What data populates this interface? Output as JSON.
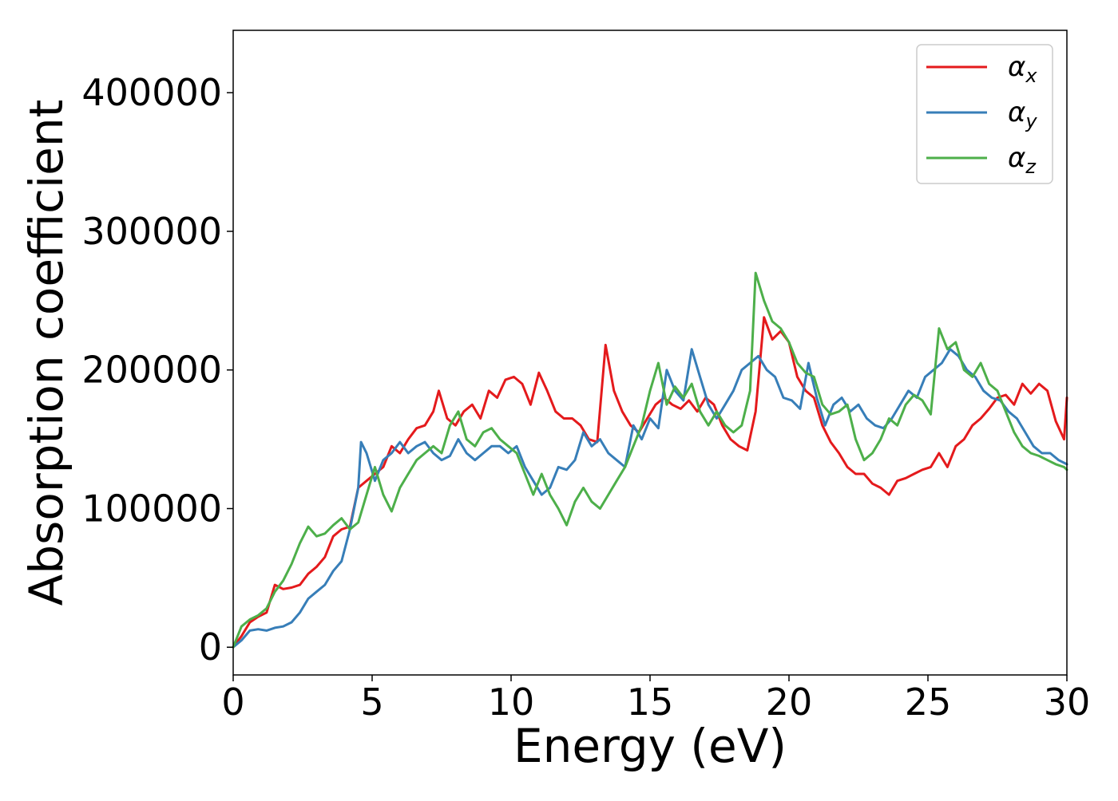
{
  "chart_data": {
    "type": "line",
    "title": "",
    "xlabel": "Energy (eV)",
    "ylabel": "Absorption coefficient",
    "xlim": [
      0,
      30
    ],
    "ylim": [
      -20000,
      445000
    ],
    "xticks": [
      0,
      5,
      10,
      15,
      20,
      25,
      30
    ],
    "yticks": [
      0,
      100000,
      200000,
      300000,
      400000
    ],
    "grid": false,
    "legend_position": "top-right",
    "series": [
      {
        "name": "α",
        "sub": "x",
        "color": "#e41a1c",
        "points": [
          [
            0,
            0
          ],
          [
            0.3,
            8000
          ],
          [
            0.6,
            18000
          ],
          [
            0.9,
            22000
          ],
          [
            1.2,
            25000
          ],
          [
            1.5,
            45000
          ],
          [
            1.8,
            42000
          ],
          [
            2.1,
            43000
          ],
          [
            2.4,
            45000
          ],
          [
            2.7,
            53000
          ],
          [
            3.0,
            58000
          ],
          [
            3.3,
            65000
          ],
          [
            3.6,
            80000
          ],
          [
            3.9,
            85000
          ],
          [
            4.2,
            87000
          ],
          [
            4.5,
            115000
          ],
          [
            4.8,
            120000
          ],
          [
            5.1,
            125000
          ],
          [
            5.4,
            130000
          ],
          [
            5.7,
            145000
          ],
          [
            6.0,
            140000
          ],
          [
            6.3,
            150000
          ],
          [
            6.6,
            158000
          ],
          [
            6.9,
            160000
          ],
          [
            7.2,
            170000
          ],
          [
            7.4,
            185000
          ],
          [
            7.7,
            165000
          ],
          [
            8.0,
            160000
          ],
          [
            8.3,
            170000
          ],
          [
            8.6,
            175000
          ],
          [
            8.9,
            165000
          ],
          [
            9.2,
            185000
          ],
          [
            9.5,
            180000
          ],
          [
            9.8,
            193000
          ],
          [
            10.1,
            195000
          ],
          [
            10.4,
            190000
          ],
          [
            10.7,
            175000
          ],
          [
            11.0,
            198000
          ],
          [
            11.3,
            185000
          ],
          [
            11.6,
            170000
          ],
          [
            11.9,
            165000
          ],
          [
            12.2,
            165000
          ],
          [
            12.5,
            160000
          ],
          [
            12.8,
            150000
          ],
          [
            13.1,
            148000
          ],
          [
            13.4,
            218000
          ],
          [
            13.7,
            185000
          ],
          [
            14.0,
            170000
          ],
          [
            14.3,
            160000
          ],
          [
            14.6,
            155000
          ],
          [
            14.9,
            165000
          ],
          [
            15.2,
            175000
          ],
          [
            15.5,
            180000
          ],
          [
            15.8,
            175000
          ],
          [
            16.1,
            172000
          ],
          [
            16.4,
            178000
          ],
          [
            16.7,
            170000
          ],
          [
            17.0,
            180000
          ],
          [
            17.3,
            175000
          ],
          [
            17.6,
            160000
          ],
          [
            17.9,
            150000
          ],
          [
            18.2,
            145000
          ],
          [
            18.5,
            142000
          ],
          [
            18.8,
            170000
          ],
          [
            19.1,
            238000
          ],
          [
            19.4,
            222000
          ],
          [
            19.7,
            228000
          ],
          [
            20.0,
            220000
          ],
          [
            20.3,
            195000
          ],
          [
            20.6,
            185000
          ],
          [
            20.9,
            180000
          ],
          [
            21.2,
            160000
          ],
          [
            21.5,
            148000
          ],
          [
            21.8,
            140000
          ],
          [
            22.1,
            130000
          ],
          [
            22.4,
            125000
          ],
          [
            22.7,
            125000
          ],
          [
            23.0,
            118000
          ],
          [
            23.3,
            115000
          ],
          [
            23.6,
            110000
          ],
          [
            23.9,
            120000
          ],
          [
            24.2,
            122000
          ],
          [
            24.5,
            125000
          ],
          [
            24.8,
            128000
          ],
          [
            25.1,
            130000
          ],
          [
            25.4,
            140000
          ],
          [
            25.7,
            130000
          ],
          [
            26.0,
            145000
          ],
          [
            26.3,
            150000
          ],
          [
            26.6,
            160000
          ],
          [
            26.9,
            165000
          ],
          [
            27.2,
            172000
          ],
          [
            27.5,
            180000
          ],
          [
            27.8,
            182000
          ],
          [
            28.1,
            175000
          ],
          [
            28.4,
            190000
          ],
          [
            28.7,
            183000
          ],
          [
            29.0,
            190000
          ],
          [
            29.3,
            185000
          ],
          [
            29.6,
            163000
          ],
          [
            29.9,
            150000
          ],
          [
            30.0,
            180000
          ]
        ]
      },
      {
        "name": "α",
        "sub": "y",
        "color": "#377eb8",
        "points": [
          [
            0,
            0
          ],
          [
            0.3,
            5000
          ],
          [
            0.6,
            12000
          ],
          [
            0.9,
            13000
          ],
          [
            1.2,
            12000
          ],
          [
            1.5,
            14000
          ],
          [
            1.8,
            15000
          ],
          [
            2.1,
            18000
          ],
          [
            2.4,
            25000
          ],
          [
            2.7,
            35000
          ],
          [
            3.0,
            40000
          ],
          [
            3.3,
            45000
          ],
          [
            3.6,
            55000
          ],
          [
            3.9,
            62000
          ],
          [
            4.2,
            85000
          ],
          [
            4.5,
            115000
          ],
          [
            4.6,
            148000
          ],
          [
            4.8,
            140000
          ],
          [
            5.1,
            120000
          ],
          [
            5.4,
            135000
          ],
          [
            5.7,
            140000
          ],
          [
            6.0,
            148000
          ],
          [
            6.3,
            140000
          ],
          [
            6.6,
            145000
          ],
          [
            6.9,
            148000
          ],
          [
            7.2,
            140000
          ],
          [
            7.5,
            135000
          ],
          [
            7.8,
            138000
          ],
          [
            8.1,
            150000
          ],
          [
            8.4,
            140000
          ],
          [
            8.7,
            135000
          ],
          [
            9.0,
            140000
          ],
          [
            9.3,
            145000
          ],
          [
            9.6,
            145000
          ],
          [
            9.9,
            140000
          ],
          [
            10.2,
            145000
          ],
          [
            10.5,
            130000
          ],
          [
            10.8,
            120000
          ],
          [
            11.1,
            110000
          ],
          [
            11.4,
            115000
          ],
          [
            11.7,
            130000
          ],
          [
            12.0,
            128000
          ],
          [
            12.3,
            135000
          ],
          [
            12.6,
            155000
          ],
          [
            12.9,
            145000
          ],
          [
            13.2,
            150000
          ],
          [
            13.5,
            140000
          ],
          [
            13.8,
            135000
          ],
          [
            14.1,
            130000
          ],
          [
            14.4,
            160000
          ],
          [
            14.7,
            150000
          ],
          [
            15.0,
            165000
          ],
          [
            15.3,
            158000
          ],
          [
            15.6,
            200000
          ],
          [
            15.9,
            185000
          ],
          [
            16.2,
            178000
          ],
          [
            16.5,
            215000
          ],
          [
            16.8,
            195000
          ],
          [
            17.1,
            175000
          ],
          [
            17.4,
            165000
          ],
          [
            17.7,
            175000
          ],
          [
            18.0,
            185000
          ],
          [
            18.3,
            200000
          ],
          [
            18.6,
            205000
          ],
          [
            18.9,
            210000
          ],
          [
            19.2,
            200000
          ],
          [
            19.5,
            195000
          ],
          [
            19.8,
            180000
          ],
          [
            20.1,
            178000
          ],
          [
            20.4,
            172000
          ],
          [
            20.7,
            205000
          ],
          [
            21.0,
            180000
          ],
          [
            21.3,
            160000
          ],
          [
            21.6,
            175000
          ],
          [
            21.9,
            180000
          ],
          [
            22.2,
            170000
          ],
          [
            22.5,
            175000
          ],
          [
            22.8,
            165000
          ],
          [
            23.1,
            160000
          ],
          [
            23.4,
            158000
          ],
          [
            23.7,
            165000
          ],
          [
            24.0,
            175000
          ],
          [
            24.3,
            185000
          ],
          [
            24.6,
            180000
          ],
          [
            24.9,
            195000
          ],
          [
            25.2,
            200000
          ],
          [
            25.5,
            205000
          ],
          [
            25.8,
            215000
          ],
          [
            26.1,
            210000
          ],
          [
            26.4,
            200000
          ],
          [
            26.7,
            195000
          ],
          [
            27.0,
            185000
          ],
          [
            27.3,
            180000
          ],
          [
            27.6,
            178000
          ],
          [
            27.9,
            170000
          ],
          [
            28.2,
            165000
          ],
          [
            28.5,
            155000
          ],
          [
            28.8,
            145000
          ],
          [
            29.1,
            140000
          ],
          [
            29.4,
            140000
          ],
          [
            29.7,
            135000
          ],
          [
            30.0,
            132000
          ]
        ]
      },
      {
        "name": "α",
        "sub": "z",
        "color": "#4daf4a",
        "points": [
          [
            0,
            0
          ],
          [
            0.3,
            15000
          ],
          [
            0.6,
            20000
          ],
          [
            0.9,
            23000
          ],
          [
            1.2,
            28000
          ],
          [
            1.5,
            40000
          ],
          [
            1.8,
            48000
          ],
          [
            2.1,
            60000
          ],
          [
            2.4,
            75000
          ],
          [
            2.7,
            87000
          ],
          [
            3.0,
            80000
          ],
          [
            3.3,
            82000
          ],
          [
            3.6,
            88000
          ],
          [
            3.9,
            93000
          ],
          [
            4.2,
            85000
          ],
          [
            4.5,
            90000
          ],
          [
            4.8,
            110000
          ],
          [
            5.1,
            130000
          ],
          [
            5.4,
            110000
          ],
          [
            5.7,
            98000
          ],
          [
            6.0,
            115000
          ],
          [
            6.3,
            125000
          ],
          [
            6.6,
            135000
          ],
          [
            6.9,
            140000
          ],
          [
            7.2,
            145000
          ],
          [
            7.5,
            140000
          ],
          [
            7.8,
            160000
          ],
          [
            8.1,
            170000
          ],
          [
            8.4,
            150000
          ],
          [
            8.7,
            145000
          ],
          [
            9.0,
            155000
          ],
          [
            9.3,
            158000
          ],
          [
            9.6,
            150000
          ],
          [
            9.9,
            145000
          ],
          [
            10.2,
            140000
          ],
          [
            10.5,
            125000
          ],
          [
            10.8,
            110000
          ],
          [
            11.1,
            125000
          ],
          [
            11.4,
            110000
          ],
          [
            11.7,
            100000
          ],
          [
            12.0,
            88000
          ],
          [
            12.3,
            105000
          ],
          [
            12.6,
            115000
          ],
          [
            12.9,
            105000
          ],
          [
            13.2,
            100000
          ],
          [
            13.5,
            110000
          ],
          [
            13.8,
            120000
          ],
          [
            14.1,
            130000
          ],
          [
            14.4,
            145000
          ],
          [
            14.7,
            160000
          ],
          [
            15.0,
            185000
          ],
          [
            15.3,
            205000
          ],
          [
            15.6,
            175000
          ],
          [
            15.9,
            188000
          ],
          [
            16.2,
            180000
          ],
          [
            16.5,
            190000
          ],
          [
            16.8,
            170000
          ],
          [
            17.1,
            160000
          ],
          [
            17.4,
            170000
          ],
          [
            17.7,
            160000
          ],
          [
            18.0,
            155000
          ],
          [
            18.3,
            160000
          ],
          [
            18.6,
            185000
          ],
          [
            18.8,
            270000
          ],
          [
            19.1,
            250000
          ],
          [
            19.4,
            235000
          ],
          [
            19.7,
            230000
          ],
          [
            20.0,
            220000
          ],
          [
            20.3,
            205000
          ],
          [
            20.6,
            198000
          ],
          [
            20.9,
            195000
          ],
          [
            21.2,
            175000
          ],
          [
            21.5,
            168000
          ],
          [
            21.8,
            170000
          ],
          [
            22.1,
            175000
          ],
          [
            22.4,
            150000
          ],
          [
            22.7,
            135000
          ],
          [
            23.0,
            140000
          ],
          [
            23.3,
            150000
          ],
          [
            23.6,
            165000
          ],
          [
            23.9,
            160000
          ],
          [
            24.2,
            175000
          ],
          [
            24.5,
            182000
          ],
          [
            24.8,
            178000
          ],
          [
            25.1,
            168000
          ],
          [
            25.4,
            230000
          ],
          [
            25.7,
            215000
          ],
          [
            26.0,
            220000
          ],
          [
            26.3,
            200000
          ],
          [
            26.6,
            195000
          ],
          [
            26.9,
            205000
          ],
          [
            27.2,
            190000
          ],
          [
            27.5,
            185000
          ],
          [
            27.8,
            170000
          ],
          [
            28.1,
            155000
          ],
          [
            28.4,
            145000
          ],
          [
            28.7,
            140000
          ],
          [
            29.0,
            138000
          ],
          [
            29.3,
            135000
          ],
          [
            29.6,
            132000
          ],
          [
            29.9,
            130000
          ],
          [
            30.0,
            128000
          ]
        ]
      }
    ]
  }
}
